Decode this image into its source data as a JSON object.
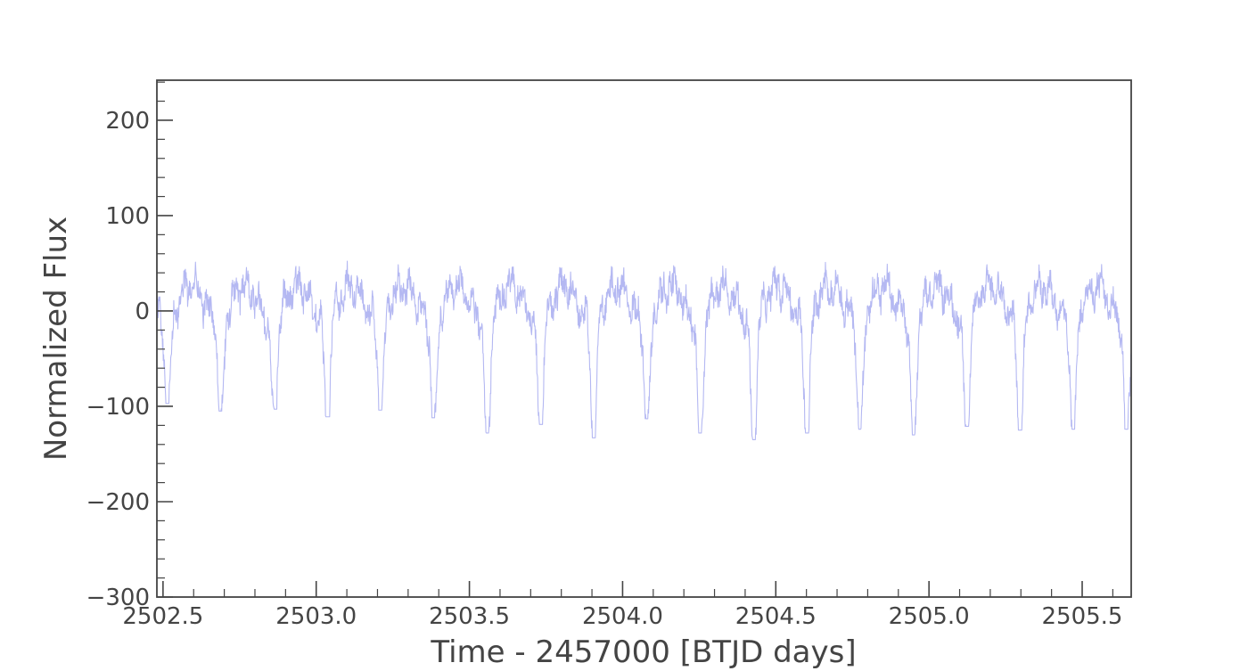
{
  "chart_data": {
    "type": "line",
    "title": "",
    "xlabel": "Time - 2457000 [BTJD days]",
    "ylabel": "Normalized Flux",
    "xlim": [
      2502.48,
      2505.66
    ],
    "ylim": [
      -300,
      242
    ],
    "x_ticks": [
      2502.5,
      2503.0,
      2503.5,
      2504.0,
      2504.5,
      2505.0,
      2505.5
    ],
    "x_tick_labels": [
      "2502.5",
      "2503.0",
      "2503.5",
      "2504.0",
      "2504.5",
      "2505.0",
      "2505.5"
    ],
    "y_ticks": [
      -300,
      -200,
      -100,
      0,
      100,
      200
    ],
    "y_tick_labels": [
      "−300",
      "−200",
      "−100",
      "0",
      "100",
      "200"
    ],
    "grid": false,
    "legend": "none",
    "series": [
      {
        "color": "#b4b8f2",
        "period_days": 0.1739,
        "first_dip_x": 2502.515,
        "dip_depths": [
          -97,
          -105,
          -103,
          -111,
          -104,
          -112,
          -128,
          -119,
          -133,
          -113,
          -128,
          -135,
          -128,
          -124,
          -130,
          -121,
          -125,
          -124
        ],
        "baseline_range": [
          -40,
          68
        ]
      }
    ]
  }
}
